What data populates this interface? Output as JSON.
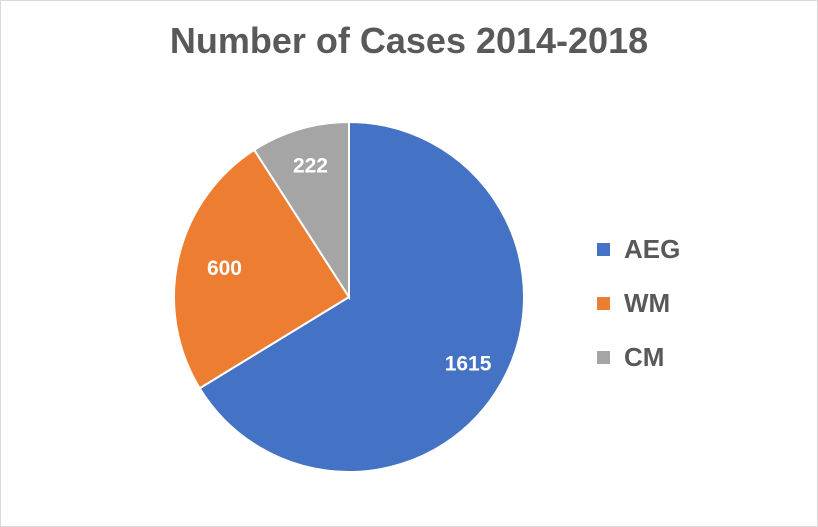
{
  "chart_data": {
    "type": "pie",
    "title": "Number of Cases 2014-2018",
    "categories": [
      "AEG",
      "WM",
      "CM"
    ],
    "values": [
      1615,
      600,
      222
    ],
    "data_labels": [
      "1615",
      "600",
      "222"
    ],
    "colors": [
      "#4472c4",
      "#ed7d31",
      "#a5a5a5"
    ],
    "legend_position": "right",
    "start_angle": "12 o'clock",
    "direction": "clockwise"
  }
}
